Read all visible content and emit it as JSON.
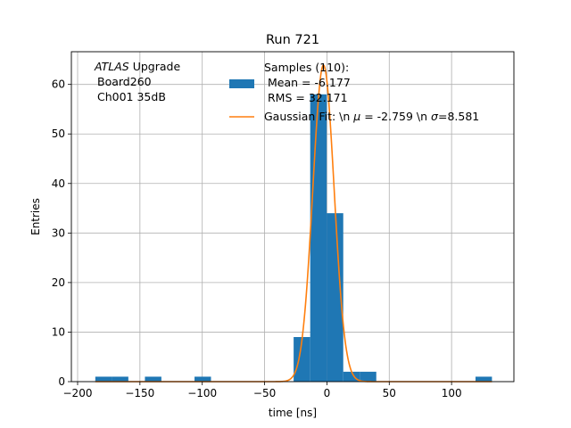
{
  "chart_data": {
    "type": "bar",
    "title": "Run 721",
    "xlabel": "time [ns]",
    "ylabel": "Entries",
    "xlim": [
      -205,
      150
    ],
    "ylim": [
      0,
      66.6
    ],
    "xticks": [
      -200,
      -150,
      -100,
      -50,
      0,
      50,
      100
    ],
    "yticks": [
      0,
      10,
      20,
      30,
      40,
      50,
      60
    ],
    "grid": true,
    "legend_position": "top-center",
    "annotation": {
      "experiment_italic": "ATLAS",
      "experiment_rest": " Upgrade",
      "line2": "Board260",
      "line3": "Ch001 35dB"
    },
    "histogram": {
      "name_lines": [
        "Samples (110):",
        "Mean = -6.177",
        "RMS = 32.171"
      ],
      "color": "#1f77b4",
      "bin_edges": [
        -185.8,
        -172.5,
        -159.3,
        -146.0,
        -132.8,
        -119.5,
        -106.2,
        -93.0,
        -79.7,
        -66.5,
        -53.2,
        -39.9,
        -26.7,
        -13.4,
        -0.2,
        13.1,
        26.4,
        39.6,
        52.9,
        66.1,
        79.4,
        92.7,
        105.9,
        119.2,
        132.4
      ],
      "counts": [
        1,
        1,
        0,
        1,
        0,
        0,
        1,
        0,
        0,
        0,
        0,
        0,
        9,
        58,
        34,
        2,
        2,
        0,
        0,
        0,
        0,
        0,
        0,
        1
      ]
    },
    "fit": {
      "type": "gaussian",
      "label_prefix": "Gaussian Fit: \\n ",
      "mu_symbol": "μ",
      "mu_text": " = -2.759 \\n ",
      "sigma_symbol": "σ",
      "sigma_text": "=8.581",
      "mu": -2.759,
      "sigma": 8.581,
      "amplitude": 63.9,
      "color": "#ff7f0e"
    }
  }
}
